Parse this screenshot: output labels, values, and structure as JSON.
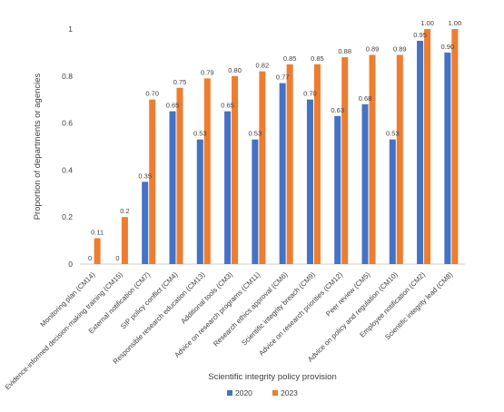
{
  "chart_data": {
    "type": "bar",
    "xlabel": "Scientific integrity policy provision",
    "ylabel": "Proportion of departments or agencies",
    "ylim": [
      0,
      1
    ],
    "yticks": [
      "0",
      "0.2",
      "0.4",
      "0.6",
      "0.8",
      "1"
    ],
    "ytick_values": [
      0,
      0.2,
      0.4,
      0.6,
      0.8,
      1
    ],
    "grid": false,
    "legend_position": "bottom",
    "categories": [
      "Monitoring plan (CM14)",
      "Evidence-informed decision-making training (CM15)",
      "External notification (CM7)",
      "SIP policy conflict (CM4)",
      "Responsible research education (CM13)",
      "Additional tools (CM3)",
      "Advice on research programs (CM11)",
      "Research ethics approval (CM6)",
      "Scientific integrity breach (CM9)",
      "Advice on research priorities (CM12)",
      "Peer review (CM5)",
      "Advice on policy and regulation (CM10)",
      "Employee notification (CM2)",
      "Scientific integrity lead (CM8)"
    ],
    "series": [
      {
        "name": "2020",
        "color": "#4472C4",
        "values": [
          0,
          0,
          0.35,
          0.65,
          0.53,
          0.65,
          0.53,
          0.77,
          0.7,
          0.63,
          0.68,
          0.53,
          0.95,
          0.9
        ],
        "labels": [
          "0",
          "0",
          "0.35",
          "0.65",
          "0.53",
          "0.65",
          "0.53",
          "0.77",
          "0.70",
          "0.63",
          "0.68",
          "0.53",
          "0.95",
          "0.90"
        ]
      },
      {
        "name": "2023",
        "color": "#ED7D31",
        "values": [
          0.11,
          0.2,
          0.7,
          0.75,
          0.79,
          0.8,
          0.82,
          0.85,
          0.85,
          0.88,
          0.89,
          0.89,
          1.0,
          1.0
        ],
        "labels": [
          "0.11",
          "0.2",
          "0.70",
          "0.75",
          "0.79",
          "0.80",
          "0.82",
          "0.85",
          "0.85",
          "0.88",
          "0.89",
          "0.89",
          "1.00",
          "1.00"
        ]
      }
    ]
  }
}
